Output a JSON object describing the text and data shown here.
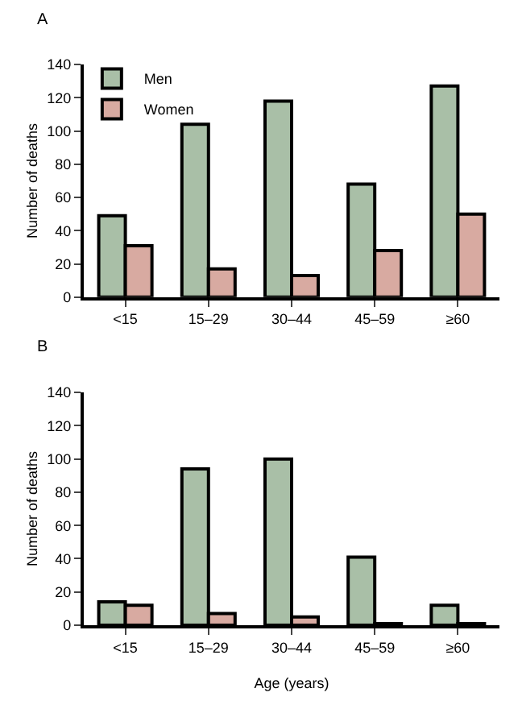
{
  "chart_data": [
    {
      "type": "bar",
      "title": "A",
      "ylabel": "Number of deaths",
      "categories": [
        "<15",
        "15–29",
        "30–44",
        "45–59",
        "≥60"
      ],
      "series": [
        {
          "name": "Men",
          "color": "#a9bfa7",
          "values": [
            49,
            104,
            118,
            68,
            127
          ]
        },
        {
          "name": "Women",
          "color": "#d8aaa1",
          "values": [
            31,
            17,
            13,
            28,
            50
          ]
        }
      ],
      "ylim": [
        0,
        140
      ],
      "yticks": [
        0,
        20,
        40,
        60,
        80,
        100,
        120,
        140
      ],
      "legend": "top left"
    },
    {
      "type": "bar",
      "title": "B",
      "ylabel": "Number of deaths",
      "xlabel": "Age (years)",
      "categories": [
        "<15",
        "15–29",
        "30–44",
        "45–59",
        "≥60"
      ],
      "series": [
        {
          "color": "#a9bfa7",
          "values": [
            14,
            94,
            100,
            41,
            12
          ]
        },
        {
          "color": "#d8aaa1",
          "values": [
            12,
            7,
            5,
            1,
            1
          ]
        }
      ],
      "ylim": [
        0,
        140
      ],
      "yticks": [
        0,
        20,
        40,
        60,
        80,
        100,
        120,
        140
      ]
    }
  ]
}
